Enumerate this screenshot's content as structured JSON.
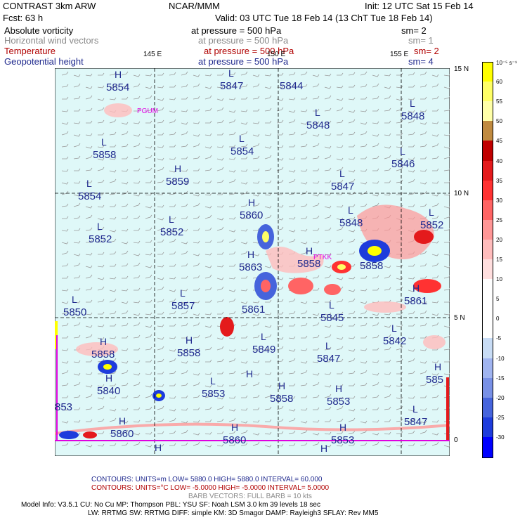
{
  "header": {
    "title_left": "CONTRAST  3km ARW",
    "center": "NCAR/MMM",
    "init": "Init: 12 UTC Sat 15 Feb 14",
    "fcst": "Fcst:    63 h",
    "valid": "Valid: 03 UTC Tue 18 Feb 14 (13 ChT Tue 18 Feb 14)"
  },
  "fields": [
    {
      "name": "Absolute vorticity",
      "pressure": "at pressure =  500 hPa",
      "sm": "sm= 2",
      "color": "#000000"
    },
    {
      "name": "Horizontal wind vectors",
      "pressure": "at pressure =  500 hPa",
      "sm": "sm= 1",
      "color": "#8a8a8a"
    },
    {
      "name": "Temperature",
      "pressure": "at pressure =  500 hPa",
      "sm": "sm= 2",
      "color": "#b00000"
    },
    {
      "name": "Geopotential height",
      "pressure": "at pressure =  500 hPa",
      "sm": "sm= 4",
      "color": "#202a8e"
    }
  ],
  "axes": {
    "lon_labels": [
      "145 E",
      "150 E",
      "155 E"
    ],
    "lat_labels": [
      "15 N",
      "10 N",
      "5 N",
      "0"
    ]
  },
  "places": [
    "PGUM",
    "PTKK"
  ],
  "centers": [
    {
      "t": "H",
      "v": "5854"
    },
    {
      "t": "L",
      "v": "5847"
    },
    {
      "t": "",
      "v": "5844"
    },
    {
      "t": "L",
      "v": "5848"
    },
    {
      "t": "L",
      "v": "5848"
    },
    {
      "t": "L",
      "v": "5858"
    },
    {
      "t": "L",
      "v": "5854"
    },
    {
      "t": "L",
      "v": "5846"
    },
    {
      "t": "L",
      "v": "5847"
    },
    {
      "t": "L",
      "v": "5854"
    },
    {
      "t": "H",
      "v": "5859"
    },
    {
      "t": "H",
      "v": "5860"
    },
    {
      "t": "L",
      "v": "5848"
    },
    {
      "t": "L",
      "v": "5852"
    },
    {
      "t": "L",
      "v": "5852"
    },
    {
      "t": "L",
      "v": "5852"
    },
    {
      "t": "H",
      "v": "5863"
    },
    {
      "t": "H",
      "v": "5858"
    },
    {
      "t": "",
      "v": "5858"
    },
    {
      "t": "L",
      "v": "5850"
    },
    {
      "t": "L",
      "v": "5857"
    },
    {
      "t": "",
      "v": "5861"
    },
    {
      "t": "L",
      "v": "5845"
    },
    {
      "t": "H",
      "v": "5861"
    },
    {
      "t": "H",
      "v": "5858"
    },
    {
      "t": "H",
      "v": "5858"
    },
    {
      "t": "L",
      "v": "5849"
    },
    {
      "t": "L",
      "v": "5847"
    },
    {
      "t": "L",
      "v": "5842"
    },
    {
      "t": "H",
      "v": "5840"
    },
    {
      "t": "L",
      "v": "5853"
    },
    {
      "t": "H",
      "v": "5858"
    },
    {
      "t": "H",
      "v": "5853"
    },
    {
      "t": "H",
      "v": "585"
    },
    {
      "t": "",
      "v": "853"
    },
    {
      "t": "H",
      "v": "5860"
    },
    {
      "t": "H",
      "v": "5860"
    },
    {
      "t": "H",
      "v": "5853"
    },
    {
      "t": "L",
      "v": "5847"
    },
    {
      "t": "H",
      "v": ""
    },
    {
      "t": "H",
      "v": ""
    },
    {
      "t": "H",
      "v": ""
    }
  ],
  "colorbar": {
    "unit": "10⁻⁵ s⁻¹",
    "labels": [
      "60",
      "55",
      "50",
      "45",
      "40",
      "35",
      "30",
      "25",
      "20",
      "15",
      "10",
      "5",
      "0",
      "-5",
      "-10",
      "-15",
      "-20",
      "-25",
      "-30"
    ],
    "colors": [
      "#ffff00",
      "#ffff66",
      "#ffffa8",
      "#c08a40",
      "#c00000",
      "#e41a1c",
      "#ff3232",
      "#ff6464",
      "#ff9696",
      "#ffbcbc",
      "#ffdede",
      "#ffffff",
      "#ffffff",
      "#ffffff",
      "#c8dcf5",
      "#a0b4f0",
      "#7890e6",
      "#4664dc",
      "#1e3cdc",
      "#0000ff"
    ]
  },
  "footer": {
    "contours_blue": "CONTOURS:  UNITS=m  LOW=  5880.0        HIGH=  5880.0        INTERVAL=   60.000",
    "contours_red": "CONTOURS:  UNITS=°C  LOW= -5.0000        HIGH= -5.0000        INTERVAL=   5.0000",
    "barb": "BARB VECTORS:  FULL BARB = 10 kts",
    "model1": "Model Info: V3.5.1    CU: No Cu     MP: Thompson     PBL: YSU       SF: Noah LSM     3.0 km   39 levels   18 sec",
    "model2": "LW: RRTMG    SW: RRTMG   DIFF: simple KM: 3D Smagor DAMP: Rayleigh3   SFLAY: Rev MM5"
  }
}
